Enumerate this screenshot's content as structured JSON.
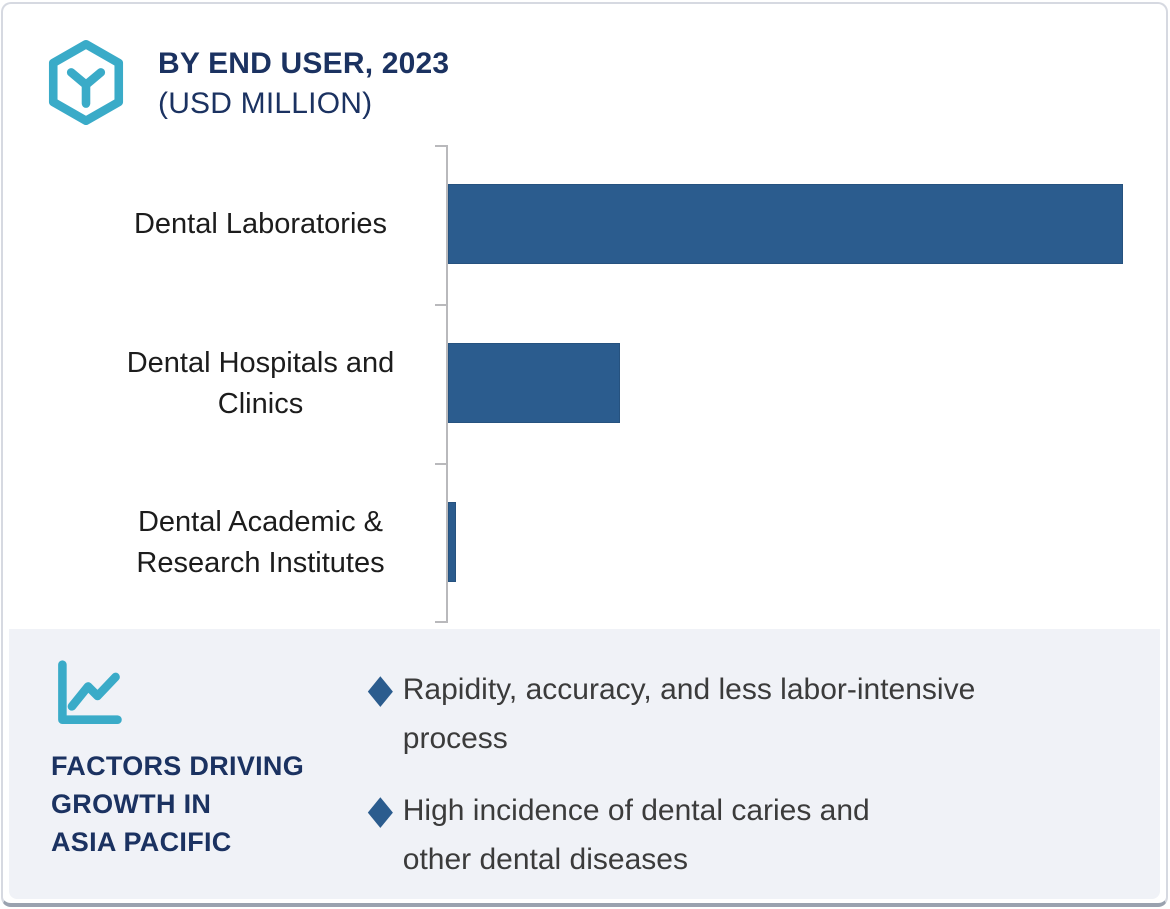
{
  "header": {
    "title_line1": "BY END USER, 2023",
    "title_line2": "(USD MILLION)"
  },
  "chart_data": {
    "type": "bar",
    "orientation": "horizontal",
    "title": "BY END USER, 2023 (USD MILLION)",
    "unit": "USD Million",
    "categories": [
      "Dental Laboratories",
      "Dental Hospitals and Clinics",
      "Dental Academic & Research Institutes"
    ],
    "values_relative_pct": [
      100,
      25.5,
      1.2
    ],
    "value_labels_visible": false,
    "axis_tick_labels_visible": false,
    "grid": false,
    "legend": false,
    "bar_color": "#2B5C8E",
    "bar_border_color": "#26527F",
    "axis_color": "#B9B9BC"
  },
  "factors": {
    "heading_line1": "FACTORS DRIVING",
    "heading_line2": "GROWTH IN",
    "heading_line3": "ASIA PACIFIC",
    "bullets": [
      {
        "lines": [
          "Rapidity, accuracy, and less labor-intensive",
          "process"
        ]
      },
      {
        "lines": [
          "High incidence of dental caries and",
          "other dental diseases"
        ]
      }
    ]
  },
  "icons": {
    "header_icon": "hexagon-cube-icon",
    "factors_icon": "line-chart-icon",
    "bullet_icon": "diamond-bullet-icon",
    "bullet_glyph": "◆"
  },
  "colors": {
    "accent_navy": "#1B3261",
    "accent_teal": "#3AABC8",
    "bar_blue": "#2B5C8E",
    "panel_background": "#F0F2F7",
    "card_border": "#D6D9E1",
    "body_text": "#3B3B3B"
  }
}
